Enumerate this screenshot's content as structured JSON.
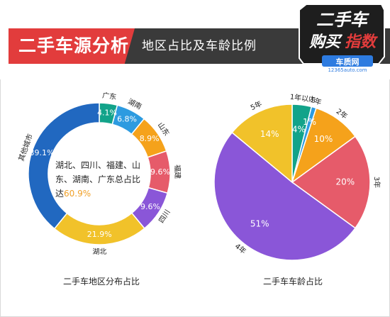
{
  "header": {
    "title": "二手车源分析",
    "subtitle": "地区占比及车龄比例",
    "logo": {
      "line1": "二手车",
      "line2a": "购买",
      "line2b": "指数",
      "site": "车质网",
      "url": "12365auto.com"
    }
  },
  "colors": {
    "red": "#e23c3c",
    "dark": "#3a3a3a",
    "teal": "#12a38a",
    "sky": "#2d9be0",
    "orange": "#f5a21b",
    "rose": "#e65b6a",
    "purple": "#8a56d8",
    "yellow": "#f1c22a",
    "blue": "#2168c0",
    "highlight": "#f0a12a"
  },
  "chart_data": [
    {
      "type": "pie",
      "variant": "donut",
      "title": "二手车地区分布占比",
      "slices": [
        {
          "label": "广东",
          "value": 4.1,
          "value_label": "4.1%",
          "color": "#12a38a"
        },
        {
          "label": "湖南",
          "value": 6.8,
          "value_label": "6.8%",
          "color": "#2d9be0"
        },
        {
          "label": "山东",
          "value": 8.9,
          "value_label": "8.9%",
          "color": "#f5a21b"
        },
        {
          "label": "福建",
          "value": 9.6,
          "value_label": "9.6%",
          "color": "#e65b6a"
        },
        {
          "label": "四川",
          "value": 9.6,
          "value_label": "9.6%",
          "color": "#8a56d8"
        },
        {
          "label": "湖北",
          "value": 21.9,
          "value_label": "21.9%",
          "color": "#f1c22a"
        },
        {
          "label": "其他城市",
          "value": 39.1,
          "value_label": "39.1%",
          "color": "#2168c0"
        }
      ],
      "center_text": {
        "line1": "湖北、四川、福建、山",
        "line2": "东、湖南、广东总占比",
        "line3_prefix": "达",
        "line3_value": "60.9%"
      }
    },
    {
      "type": "pie",
      "title": "二手车车龄占比",
      "slices": [
        {
          "label": "1年以内",
          "value": 4,
          "value_label": "4%",
          "color": "#12a38a"
        },
        {
          "label": "1年",
          "value": 1,
          "value_label": "1%",
          "color": "#2d9be0"
        },
        {
          "label": "2年",
          "value": 10,
          "value_label": "10%",
          "color": "#f5a21b"
        },
        {
          "label": "3年",
          "value": 20,
          "value_label": "20%",
          "color": "#e65b6a"
        },
        {
          "label": "4年",
          "value": 51,
          "value_label": "51%",
          "color": "#8a56d8"
        },
        {
          "label": "5年",
          "value": 14,
          "value_label": "14%",
          "color": "#f1c22a"
        }
      ]
    }
  ]
}
